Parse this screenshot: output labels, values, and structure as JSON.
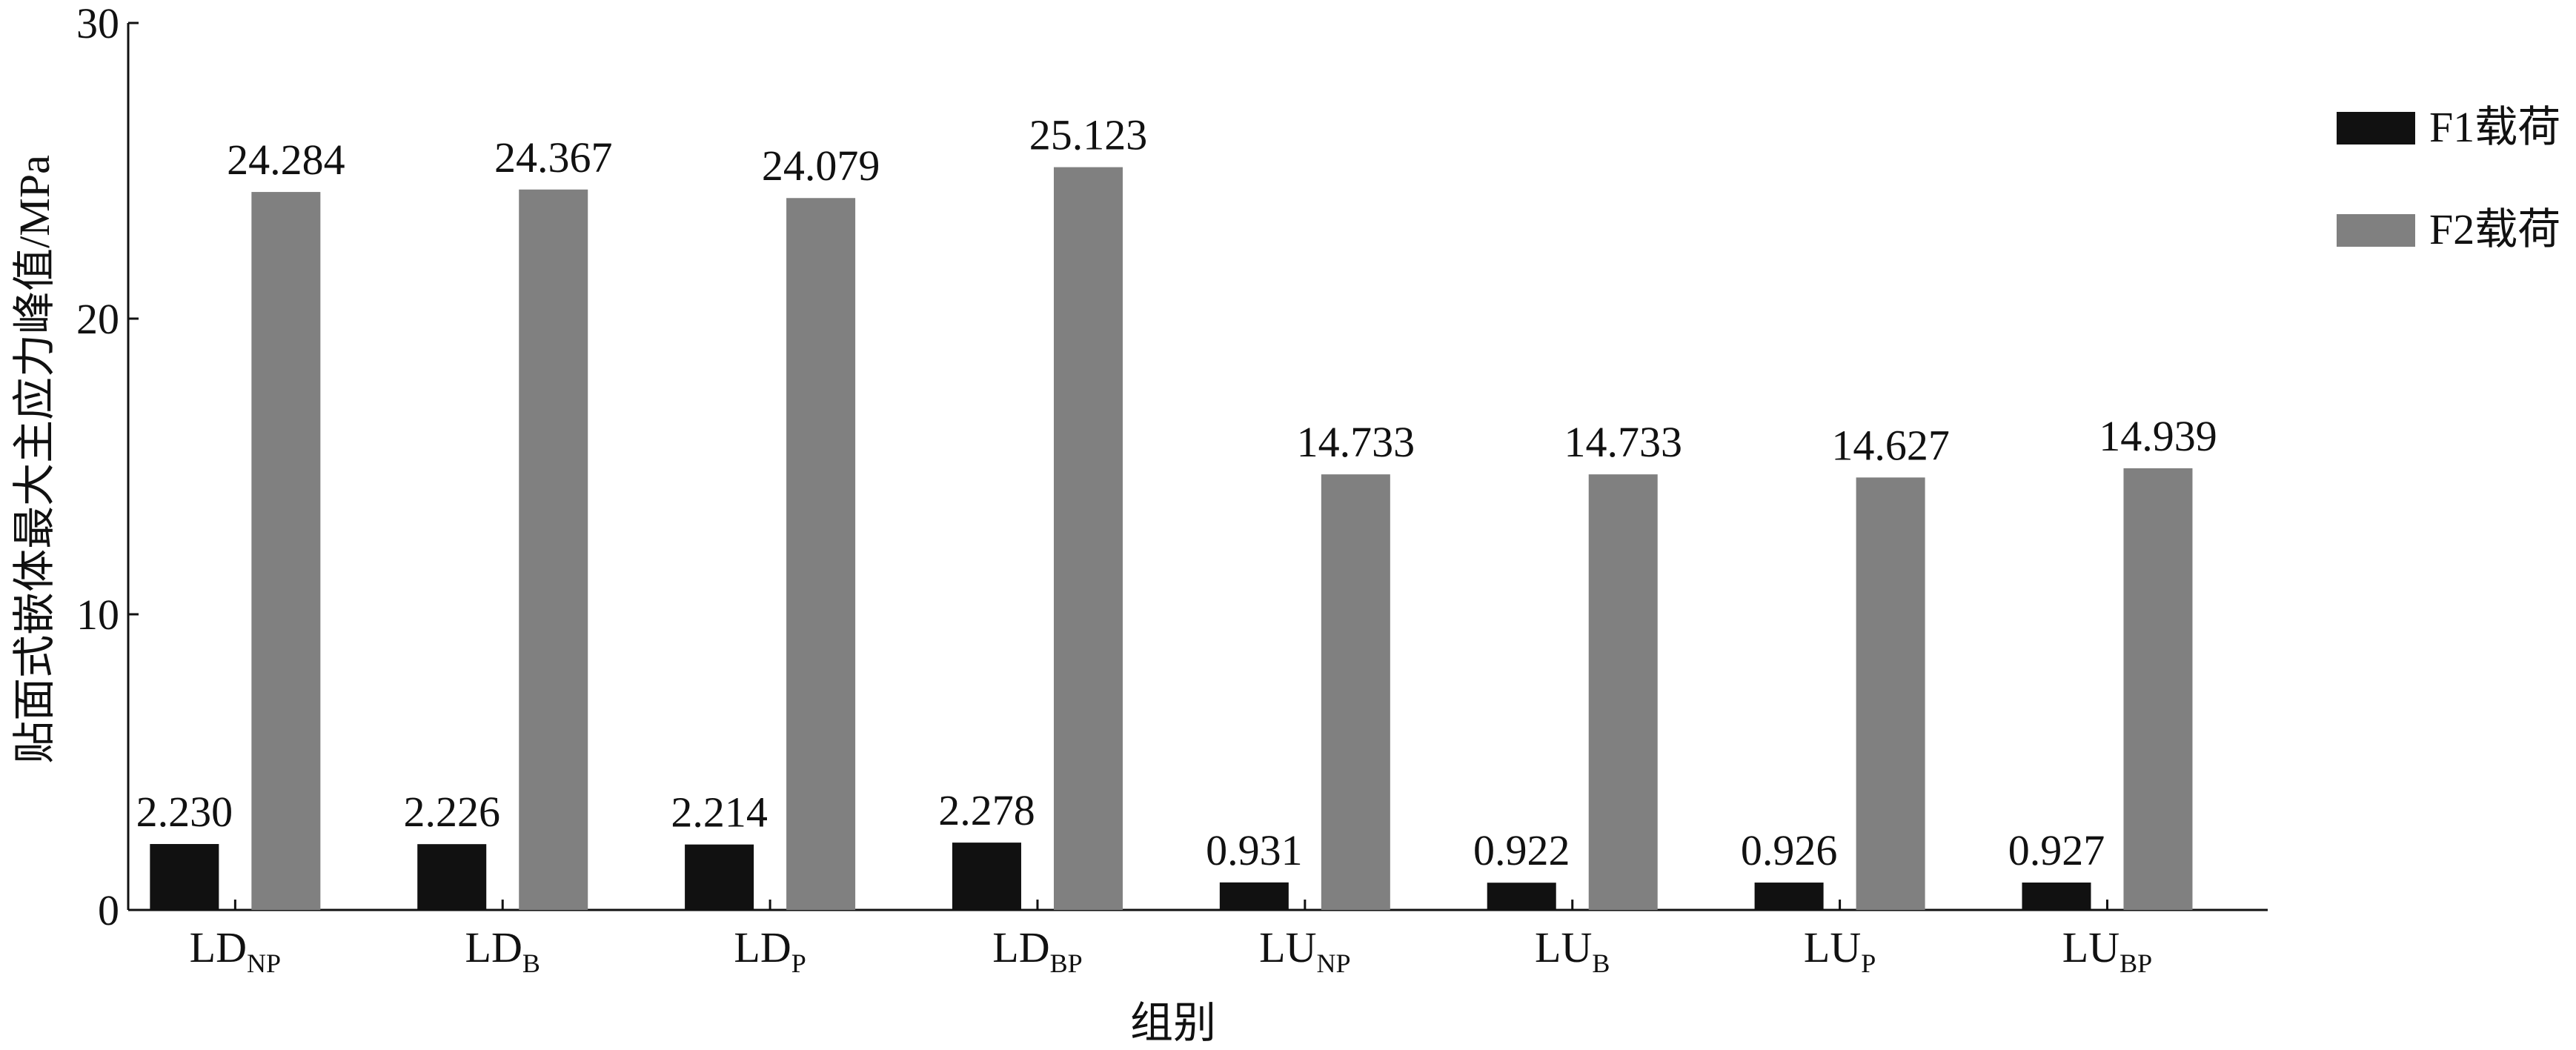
{
  "chart_data": {
    "type": "bar",
    "y_label": "贴面式嵌体最大主应力峰值/MPa",
    "x_label": "组别",
    "categories": [
      {
        "main": "LD",
        "sub": "NP"
      },
      {
        "main": "LD",
        "sub": "B"
      },
      {
        "main": "LD",
        "sub": "P"
      },
      {
        "main": "LD",
        "sub": "BP"
      },
      {
        "main": "LU",
        "sub": "NP"
      },
      {
        "main": "LU",
        "sub": "B"
      },
      {
        "main": "LU",
        "sub": "P"
      },
      {
        "main": "LU",
        "sub": "BP"
      }
    ],
    "series": [
      {
        "name": "F1载荷",
        "color": "#111111",
        "values": [
          2.23,
          2.226,
          2.214,
          2.278,
          0.931,
          0.922,
          0.926,
          0.927
        ],
        "value_labels": [
          "2.230",
          "2.226",
          "2.214",
          "2.278",
          "0.931",
          "0.922",
          "0.926",
          "0.927"
        ]
      },
      {
        "name": "F2载荷",
        "color": "#808080",
        "values": [
          24.284,
          24.367,
          24.079,
          25.123,
          14.733,
          14.733,
          14.627,
          14.939
        ],
        "value_labels": [
          "24.284",
          "24.367",
          "24.079",
          "25.123",
          "14.733",
          "14.733",
          "14.627",
          "14.939"
        ]
      }
    ],
    "ylim": [
      0,
      30
    ],
    "yticks": [
      0,
      10,
      20,
      30
    ],
    "grid": false,
    "legend": "right"
  }
}
